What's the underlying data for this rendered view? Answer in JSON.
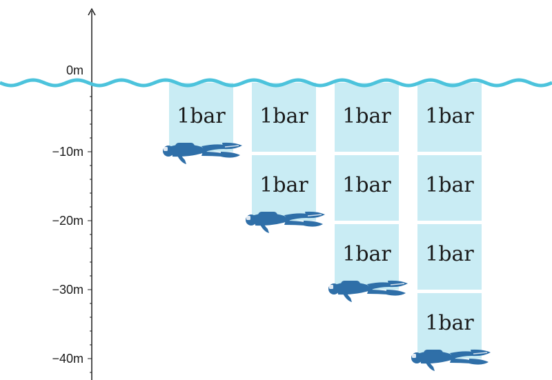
{
  "diagram": {
    "depth_axis": {
      "unit": "m",
      "ticks": [
        {
          "depth": 0,
          "label": "0m"
        },
        {
          "depth": 10,
          "label": "−10m"
        },
        {
          "depth": 20,
          "label": "−20m"
        },
        {
          "depth": 30,
          "label": "−30m"
        },
        {
          "depth": 40,
          "label": "−40m"
        }
      ]
    },
    "block_label": "1bar",
    "columns": [
      {
        "name": "diver-10m",
        "depth": 10,
        "blocks": 1
      },
      {
        "name": "diver-20m",
        "depth": 20,
        "blocks": 2
      },
      {
        "name": "diver-30m",
        "depth": 30,
        "blocks": 3
      },
      {
        "name": "diver-40m",
        "depth": 40,
        "blocks": 4
      }
    ],
    "colors": {
      "water_line": "#4cc3dc",
      "pressure_block": "#c9ecf4",
      "diver": "#2f6fa8",
      "axis": "#1a1a1a"
    }
  }
}
